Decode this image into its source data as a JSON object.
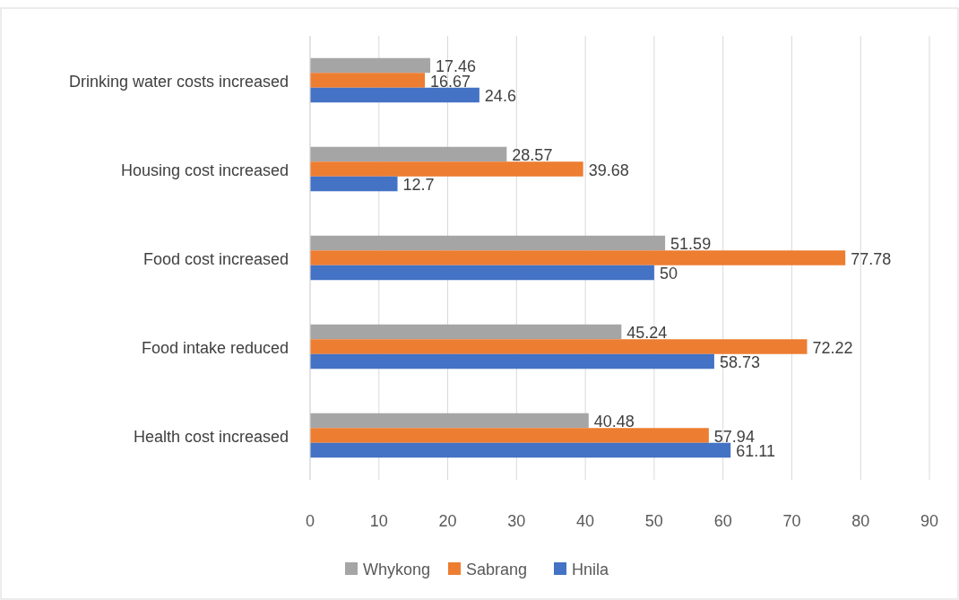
{
  "chart_data": {
    "type": "bar",
    "orientation": "horizontal",
    "categories": [
      "Drinking water costs increased",
      "Housing cost increased",
      "Food cost increased",
      "Food intake reduced",
      "Health cost increased"
    ],
    "series": [
      {
        "name": "Whykong",
        "color": "#a5a5a5",
        "values": [
          17.46,
          28.57,
          51.59,
          45.24,
          40.48
        ]
      },
      {
        "name": "Sabrang",
        "color": "#ed7d31",
        "values": [
          16.67,
          39.68,
          77.78,
          72.22,
          57.94
        ]
      },
      {
        "name": "Hnila",
        "color": "#4472c4",
        "values": [
          24.6,
          12.7,
          50,
          58.73,
          61.11
        ]
      }
    ],
    "xlim": [
      0,
      90
    ],
    "xticks": [
      0,
      10,
      20,
      30,
      40,
      50,
      60,
      70,
      80,
      90
    ],
    "grid": "x",
    "legend": "bottom",
    "data_labels": true
  }
}
